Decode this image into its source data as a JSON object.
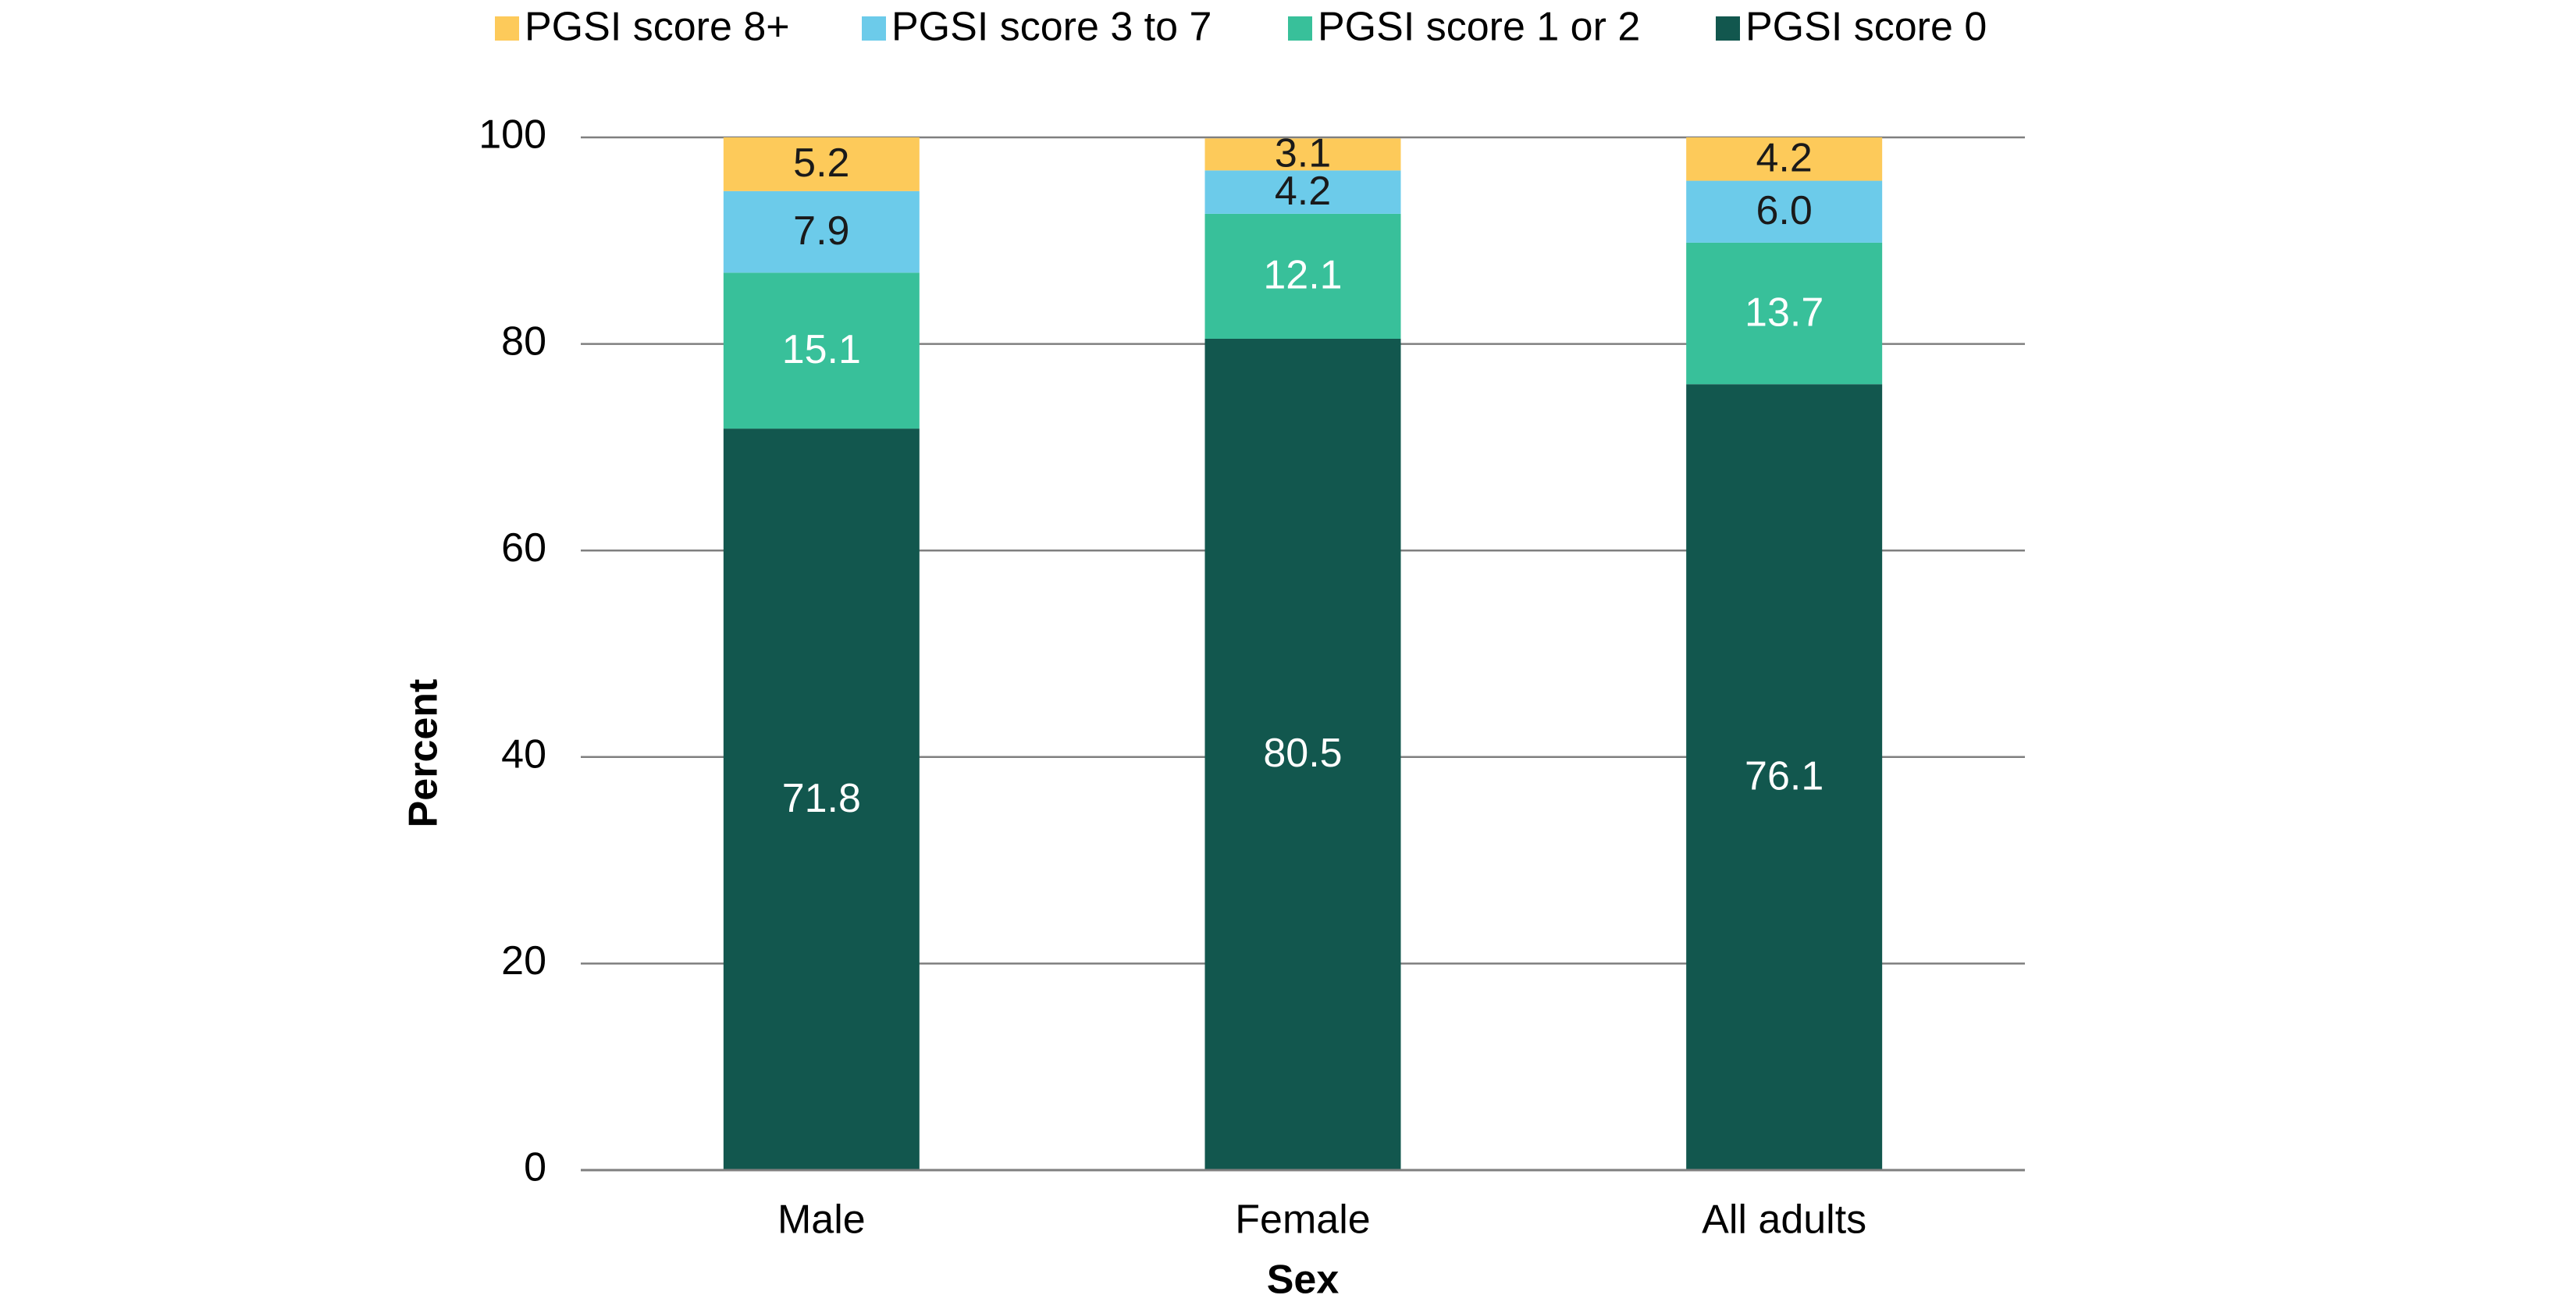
{
  "chart_data": {
    "type": "stacked_bar",
    "x_label": "Sex",
    "y_label": "Percent",
    "categories": [
      "Male",
      "Female",
      "All adults"
    ],
    "series": [
      {
        "name": "PGSI score 8+",
        "color": "#fdca5a",
        "label_color": "#1a1a1a",
        "values": [
          5.2,
          3.1,
          4.2
        ]
      },
      {
        "name": "PGSI score 3 to 7",
        "color": "#6ccbea",
        "label_color": "#1a1a1a",
        "values": [
          7.9,
          4.2,
          6
        ],
        "value_labels": [
          "7.9",
          "4.2",
          "6.0"
        ]
      },
      {
        "name": "PGSI score 1 or 2",
        "color": "#38c09a",
        "label_color": "#ffffff",
        "values": [
          15.1,
          12.1,
          13.7
        ]
      },
      {
        "name": "PGSI score 0",
        "color": "#12574e",
        "label_color": "#ffffff",
        "values": [
          71.8,
          80.5,
          76.1
        ]
      }
    ],
    "ylim": [
      0,
      100
    ],
    "yticks": [
      0,
      20,
      40,
      60,
      80,
      100
    ],
    "grid": true,
    "legend": "top"
  }
}
